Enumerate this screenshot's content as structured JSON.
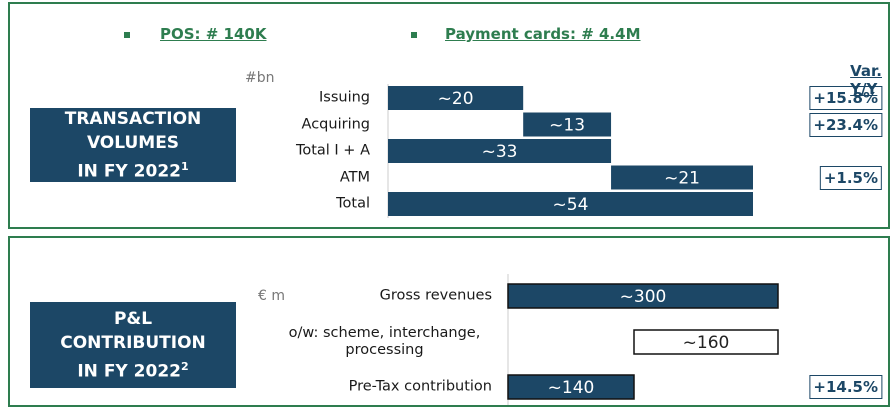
{
  "bullets": [
    "POS: # 140K",
    "Payment cards: # 4.4M"
  ],
  "chart_data": [
    {
      "type": "waterfall",
      "title_lines": [
        "TRANSACTION",
        "VOLUMES",
        "IN FY 2022"
      ],
      "title_footnote": "1",
      "unit": "#bn",
      "categories": [
        "Issuing",
        "Acquiring",
        "Total I + A",
        "ATM",
        "Total"
      ],
      "values": [
        20,
        13,
        33,
        21,
        54
      ],
      "value_labels": [
        "~20",
        "~13",
        "~33",
        "~21",
        "~54"
      ],
      "measures": [
        "increase",
        "increase",
        "total",
        "increase",
        "total"
      ],
      "color": "#1c4766",
      "xlim": [
        0,
        54
      ],
      "change_title": "Var. Y/Y",
      "changes": [
        "+15.8%",
        "+23.4%",
        null,
        "+1.5%",
        null
      ]
    },
    {
      "type": "waterfall",
      "title_lines": [
        "P&L",
        "CONTRIBUTION",
        "IN FY 2022"
      ],
      "title_footnote": "2",
      "unit": "€ m",
      "categories": [
        "Gross revenues",
        "o/w: scheme, interchange, processing",
        "Pre-Tax contribution"
      ],
      "values": [
        300,
        160,
        140
      ],
      "value_labels": [
        "~300",
        "~160",
        "~140"
      ],
      "measures": [
        "total",
        "decrease",
        "total"
      ],
      "color": "#1c4766",
      "xlim": [
        0,
        300
      ],
      "changes": [
        null,
        null,
        "+14.5%"
      ]
    }
  ]
}
